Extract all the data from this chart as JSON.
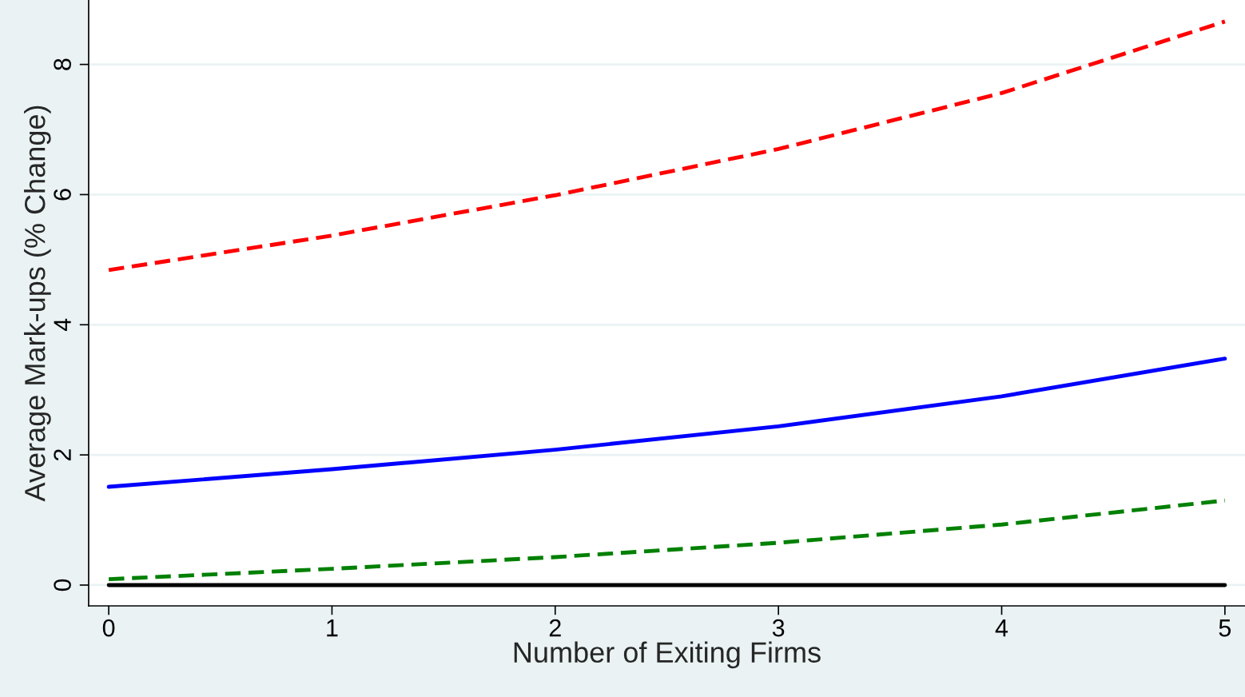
{
  "chart_data": {
    "type": "line",
    "xlabel": "Number of Exiting Firms",
    "ylabel": "Average Mark-ups (% Change)",
    "x": [
      0,
      1,
      2,
      3,
      4,
      5
    ],
    "series": [
      {
        "color": "#ff0000",
        "line_style": "dashed",
        "values": [
          4.84,
          5.37,
          5.99,
          6.7,
          7.56,
          8.66
        ]
      },
      {
        "color": "#0000ff",
        "line_style": "solid",
        "values": [
          1.51,
          1.78,
          2.08,
          2.44,
          2.9,
          3.48
        ]
      },
      {
        "color": "#008000",
        "line_style": "dashed",
        "values": [
          0.09,
          0.25,
          0.43,
          0.65,
          0.93,
          1.3
        ]
      },
      {
        "color": "#000000",
        "line_style": "solid",
        "values": [
          0,
          0,
          0,
          0,
          0,
          0
        ]
      }
    ],
    "xlim": [
      -0.09,
      5.09
    ],
    "ylim": [
      -0.32,
      8.99
    ],
    "xticks": [
      0,
      1,
      2,
      3,
      4,
      5
    ],
    "yticks": [
      0,
      2,
      4,
      6,
      8
    ],
    "grid": "y"
  }
}
